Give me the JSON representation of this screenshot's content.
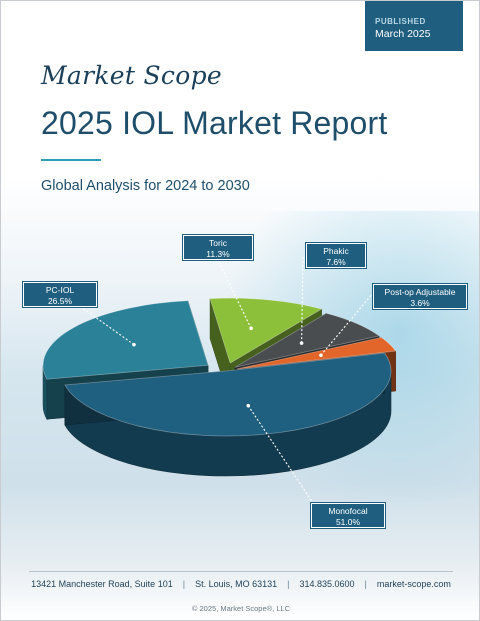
{
  "badge": {
    "kicker": "PUBLISHED",
    "date": "March 2025"
  },
  "brand": {
    "logo_text": "Market Scope"
  },
  "header": {
    "title": "2025 IOL Market Report",
    "subtitle": "Global Analysis for 2024 to 2030"
  },
  "colors": {
    "navy": "#1f5e7e",
    "monofocal": "#1f5f7f",
    "pc_iol": "#2a8198",
    "toric": "#8cbf3a",
    "phakic": "#4a4d50",
    "post_op_adjustable": "#e2652a"
  },
  "chart_data": {
    "type": "pie",
    "title": "",
    "slices": [
      {
        "label": "Monofocal",
        "value": 51.0,
        "display": "51.0%"
      },
      {
        "label": "PC-IOL",
        "value": 26.5,
        "display": "26.5%"
      },
      {
        "label": "Toric",
        "value": 11.3,
        "display": "11.3%"
      },
      {
        "label": "Phakic",
        "value": 7.6,
        "display": "7.6%"
      },
      {
        "label": "Post-op Adjustable",
        "value": 3.6,
        "display": "3.6%"
      }
    ]
  },
  "footer": {
    "address": "13421 Manchester Road, Suite 101",
    "city": "St. Louis, MO 63131",
    "phone": "314.835.0600",
    "website": "market-scope.com",
    "separator": "|",
    "copyright": "© 2025, Market Scope®, LLC"
  }
}
